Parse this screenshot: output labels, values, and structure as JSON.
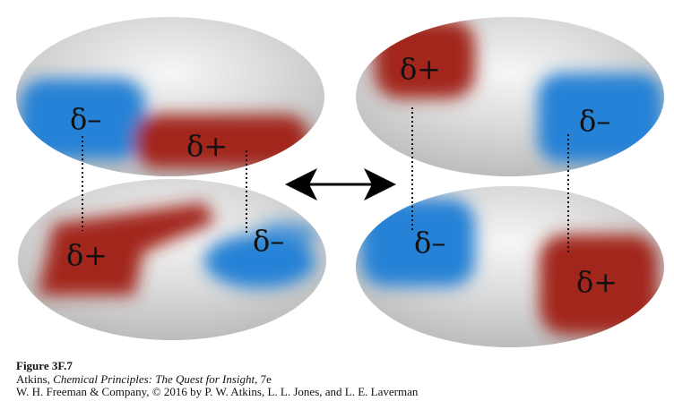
{
  "diagram": {
    "arrow": "double-headed-arrow",
    "left_pair": {
      "upper": {
        "neg_label": "δ–",
        "pos_label": "δ+"
      },
      "lower": {
        "pos_label": "δ+",
        "neg_label": "δ–"
      }
    },
    "right_pair": {
      "upper": {
        "pos_label": "δ+",
        "neg_label": "δ–"
      },
      "lower": {
        "neg_label": "δ–",
        "pos_label": "δ+"
      }
    },
    "colors": {
      "positive": "#a01c12",
      "negative": "#1f7fd6",
      "neutral": "#c9c9c9",
      "highlight": "#f4f4f4"
    }
  },
  "caption": {
    "figure_number": "Figure 3F.7",
    "line2_prefix": "Atkins, ",
    "line2_title": "Chemical Principles: The Quest for Insight",
    "line2_suffix": ", 7e",
    "line3": "W. H. Freeman & Company, © 2016 by P. W. Atkins, L. L. Jones, and L. E. Laverman"
  }
}
